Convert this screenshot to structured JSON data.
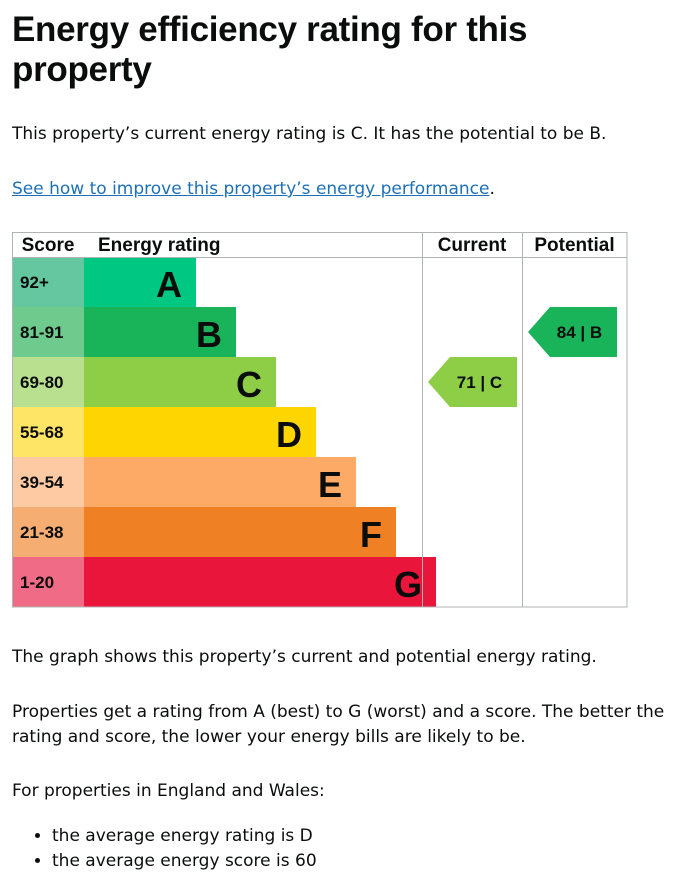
{
  "page": {
    "title": "Energy efficiency rating for this property",
    "current_summary": "This property’s current energy rating is C. It has the potential to be B.",
    "improve_link": "See how to improve this property’s energy performance",
    "improve_link_suffix": ".",
    "graph_description": "The graph shows this property’s current and potential energy rating.",
    "ratings_explanation": "Properties get a rating from A (best) to G (worst) and a score. The better the rating and score, the lower your energy bills are likely to be.",
    "region_intro": "For properties in England and Wales:",
    "bullets": [
      "the average energy rating is D",
      "the average energy score is 60"
    ]
  },
  "chart_data": {
    "type": "bar",
    "headers": {
      "score": "Score",
      "rating": "Energy rating",
      "current": "Current",
      "potential": "Potential"
    },
    "bands": [
      {
        "letter": "A",
        "range": "92+",
        "color": "#00c781",
        "score_bg": "#64c7a0"
      },
      {
        "letter": "B",
        "range": "81-91",
        "color": "#19b459",
        "score_bg": "#6ecb8d"
      },
      {
        "letter": "C",
        "range": "69-80",
        "color": "#8dce46",
        "score_bg": "#b8e08f"
      },
      {
        "letter": "D",
        "range": "55-68",
        "color": "#ffd500",
        "score_bg": "#ffe566"
      },
      {
        "letter": "E",
        "range": "39-54",
        "color": "#fcaa65",
        "score_bg": "#fdcaa3"
      },
      {
        "letter": "F",
        "range": "21-38",
        "color": "#ef8023",
        "score_bg": "#f5ad72"
      },
      {
        "letter": "G",
        "range": "1-20",
        "color": "#e9153b",
        "score_bg": "#f06b85"
      }
    ],
    "current": {
      "score": 71,
      "letter": "C",
      "label": "71 | C",
      "color": "#8dce46"
    },
    "potential": {
      "score": 84,
      "letter": "B",
      "label": "84 | B",
      "color": "#19b459"
    }
  }
}
